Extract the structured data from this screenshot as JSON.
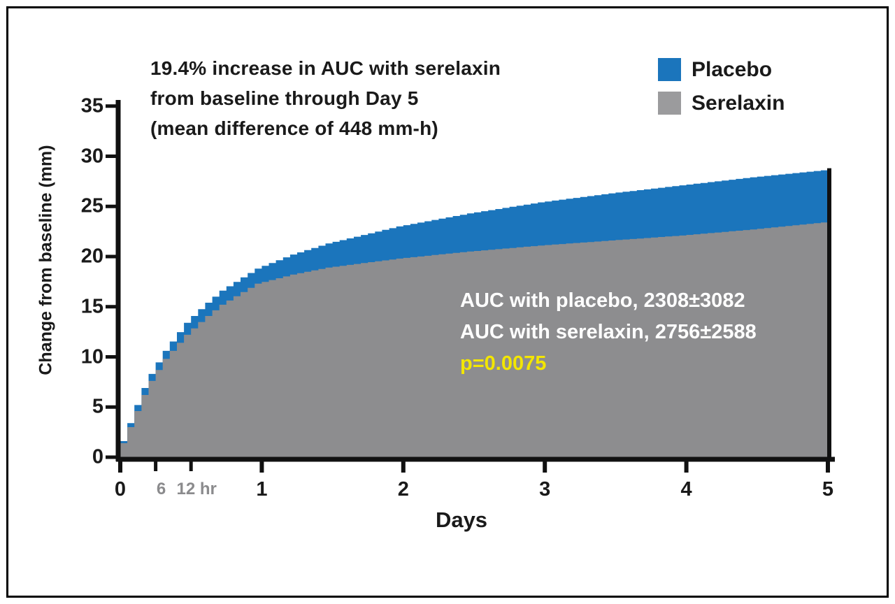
{
  "figure": {
    "title_lines": [
      "19.4% increase in AUC with serelaxin",
      "from baseline through Day 5",
      "(mean difference of 448 mm-h)"
    ],
    "annotation": {
      "line1": "AUC with placebo, 2308±3082",
      "line2": "AUC with serelaxin, 2756±2588",
      "p_value": "p=0.0075"
    },
    "legend": [
      {
        "label": "Placebo",
        "color": "#1b75bc"
      },
      {
        "label": "Serelaxin",
        "color": "#9b9b9d"
      }
    ]
  },
  "chart_data": {
    "type": "area",
    "title": "19.4% increase in AUC with serelaxin from baseline through Day 5 (mean difference of 448 mm-h)",
    "xlabel": "Days",
    "ylabel": "Change from baseline (mm)",
    "xlim": [
      0,
      5
    ],
    "ylim": [
      0,
      35
    ],
    "x_ticks": [
      0,
      1,
      2,
      3,
      4,
      5
    ],
    "x_minor_ticks": [
      {
        "t": 0.25,
        "label": "6"
      },
      {
        "t": 0.5,
        "label": "12 hr"
      }
    ],
    "y_ticks": [
      0,
      5,
      10,
      15,
      20,
      25,
      30,
      35
    ],
    "grid": false,
    "legend_position": "top-right",
    "style": "stepped overlapping areas, serelaxin (gray) drawn in front of placebo (blue)",
    "series": [
      {
        "name": "Placebo",
        "color": "#1b75bc",
        "points": [
          [
            0,
            0
          ],
          [
            0.05,
            1.6
          ],
          [
            0.1,
            3.4
          ],
          [
            0.15,
            5.2
          ],
          [
            0.2,
            6.9
          ],
          [
            0.25,
            8.3
          ],
          [
            0.35,
            10.6
          ],
          [
            0.5,
            13.4
          ],
          [
            0.625,
            15.1
          ],
          [
            0.75,
            16.6
          ],
          [
            1,
            18.8
          ],
          [
            1.25,
            20.2
          ],
          [
            1.5,
            21.3
          ],
          [
            2,
            23.0
          ],
          [
            2.5,
            24.3
          ],
          [
            3,
            25.4
          ],
          [
            3.5,
            26.3
          ],
          [
            4,
            27.1
          ],
          [
            4.5,
            27.9
          ],
          [
            5,
            28.6
          ]
        ]
      },
      {
        "name": "Serelaxin",
        "color": "#8d8d8f",
        "points": [
          [
            0,
            0
          ],
          [
            0.05,
            1.4
          ],
          [
            0.1,
            3.0
          ],
          [
            0.15,
            4.6
          ],
          [
            0.2,
            6.2
          ],
          [
            0.25,
            7.6
          ],
          [
            0.35,
            9.8
          ],
          [
            0.5,
            12.2
          ],
          [
            0.625,
            13.8
          ],
          [
            0.75,
            15.2
          ],
          [
            1,
            17.3
          ],
          [
            1.25,
            18.2
          ],
          [
            1.5,
            18.9
          ],
          [
            2,
            19.8
          ],
          [
            2.5,
            20.5
          ],
          [
            3,
            21.1
          ],
          [
            3.5,
            21.6
          ],
          [
            4,
            22.1
          ],
          [
            4.5,
            22.7
          ],
          [
            5,
            23.4
          ]
        ]
      }
    ],
    "auc_values": {
      "placebo": "2308±3082",
      "serelaxin": "2756±2588",
      "p": "p=0.0075"
    }
  }
}
